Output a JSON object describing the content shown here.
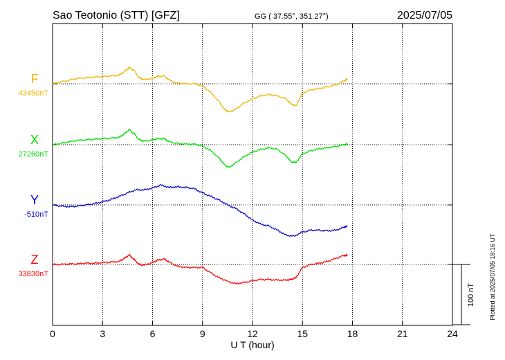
{
  "header": {
    "station": "Sao Teotonio (STT)  [GFZ]",
    "coords": "GG ( 37.55°, 351.27°)",
    "date": "2025/07/05"
  },
  "chart_data": {
    "type": "line",
    "xlabel": "U T (hour)",
    "xlim": [
      0,
      24
    ],
    "xticks": [
      "0",
      "3",
      "6",
      "9",
      "12",
      "15",
      "18",
      "21",
      "24"
    ],
    "scale_label": "100 nT",
    "footer": "Plotted at 2025/07/05 18:16 UT",
    "series": [
      {
        "name": "F",
        "baseline_label": "43450nT",
        "color": "#f0b400",
        "x": [
          0,
          0.5,
          1,
          1.5,
          2,
          2.5,
          3,
          3.5,
          4,
          4.3,
          4.6,
          4.9,
          5.2,
          5.5,
          6,
          6.3,
          6.7,
          7,
          7.5,
          8,
          8.5,
          9,
          9.5,
          10,
          10.3,
          10.6,
          11,
          11.5,
          12,
          12.5,
          13,
          13.5,
          14,
          14.3,
          14.6,
          15,
          15.5,
          16,
          16.5,
          17,
          17.5,
          17.7
        ],
        "y": [
          0,
          3,
          6,
          9,
          10,
          11,
          12,
          13,
          14,
          20,
          27,
          22,
          10,
          7,
          9,
          12,
          13,
          6,
          1,
          0,
          0,
          -3,
          -15,
          -30,
          -42,
          -47,
          -42,
          -32,
          -25,
          -20,
          -18,
          -20,
          -25,
          -33,
          -37,
          -15,
          -10,
          -8,
          -5,
          -2,
          5,
          8
        ]
      },
      {
        "name": "X",
        "baseline_label": "27260nT",
        "color": "#00dd00",
        "x": [
          0,
          0.5,
          1,
          1.5,
          2,
          2.5,
          3,
          3.5,
          4,
          4.3,
          4.6,
          4.9,
          5.2,
          5.5,
          6,
          6.3,
          6.7,
          7,
          7.5,
          8,
          8.5,
          9,
          9.5,
          10,
          10.3,
          10.6,
          11,
          11.5,
          12,
          12.5,
          13,
          13.5,
          14,
          14.3,
          14.6,
          15,
          15.5,
          16,
          16.5,
          17,
          17.5,
          17.7
        ],
        "y": [
          0,
          2,
          5,
          7,
          8,
          9,
          10,
          11,
          12,
          18,
          25,
          18,
          8,
          6,
          8,
          10,
          10,
          5,
          2,
          1,
          1,
          -2,
          -10,
          -22,
          -33,
          -38,
          -30,
          -20,
          -12,
          -8,
          -5,
          -8,
          -18,
          -28,
          -30,
          -15,
          -10,
          -7,
          -5,
          -3,
          0,
          1
        ]
      },
      {
        "name": "Y",
        "baseline_label": "-510nT",
        "color": "#0000cc",
        "x": [
          0,
          0.5,
          1,
          1.5,
          2,
          2.5,
          3,
          3.5,
          4,
          4.5,
          5,
          5.5,
          6,
          6.5,
          7,
          7.5,
          8,
          8.5,
          9,
          9.5,
          10,
          10.5,
          11,
          11.5,
          12,
          12.5,
          13,
          13.5,
          14,
          14.5,
          15,
          15.5,
          16,
          16.5,
          17,
          17.5,
          17.7
        ],
        "y": [
          0,
          -2,
          -3,
          -2,
          0,
          2,
          5,
          9,
          14,
          20,
          25,
          25,
          28,
          33,
          29,
          30,
          29,
          27,
          20,
          14,
          8,
          0,
          -6,
          -15,
          -25,
          -32,
          -35,
          -42,
          -50,
          -52,
          -45,
          -42,
          -42,
          -43,
          -42,
          -37,
          -35
        ]
      },
      {
        "name": "Z",
        "baseline_label": "33830nT",
        "color": "#ff0000",
        "x": [
          0,
          0.5,
          1,
          1.5,
          2,
          2.5,
          3,
          3.5,
          4,
          4.3,
          4.6,
          4.9,
          5.2,
          5.5,
          6,
          6.3,
          6.7,
          7,
          7.5,
          8,
          8.5,
          9,
          9.5,
          10,
          10.5,
          11,
          11.5,
          12,
          12.5,
          13,
          13.5,
          14,
          14.3,
          14.6,
          15,
          15.5,
          16,
          16.5,
          17,
          17.5,
          17.7
        ],
        "y": [
          0,
          0,
          1,
          1,
          2,
          2,
          3,
          4,
          5,
          10,
          16,
          8,
          0,
          -1,
          3,
          7,
          9,
          4,
          -3,
          -5,
          -5,
          -5,
          -14,
          -22,
          -28,
          -32,
          -30,
          -27,
          -25,
          -25,
          -26,
          -26,
          -25,
          -22,
          -5,
          0,
          2,
          5,
          10,
          15,
          15
        ]
      }
    ]
  }
}
